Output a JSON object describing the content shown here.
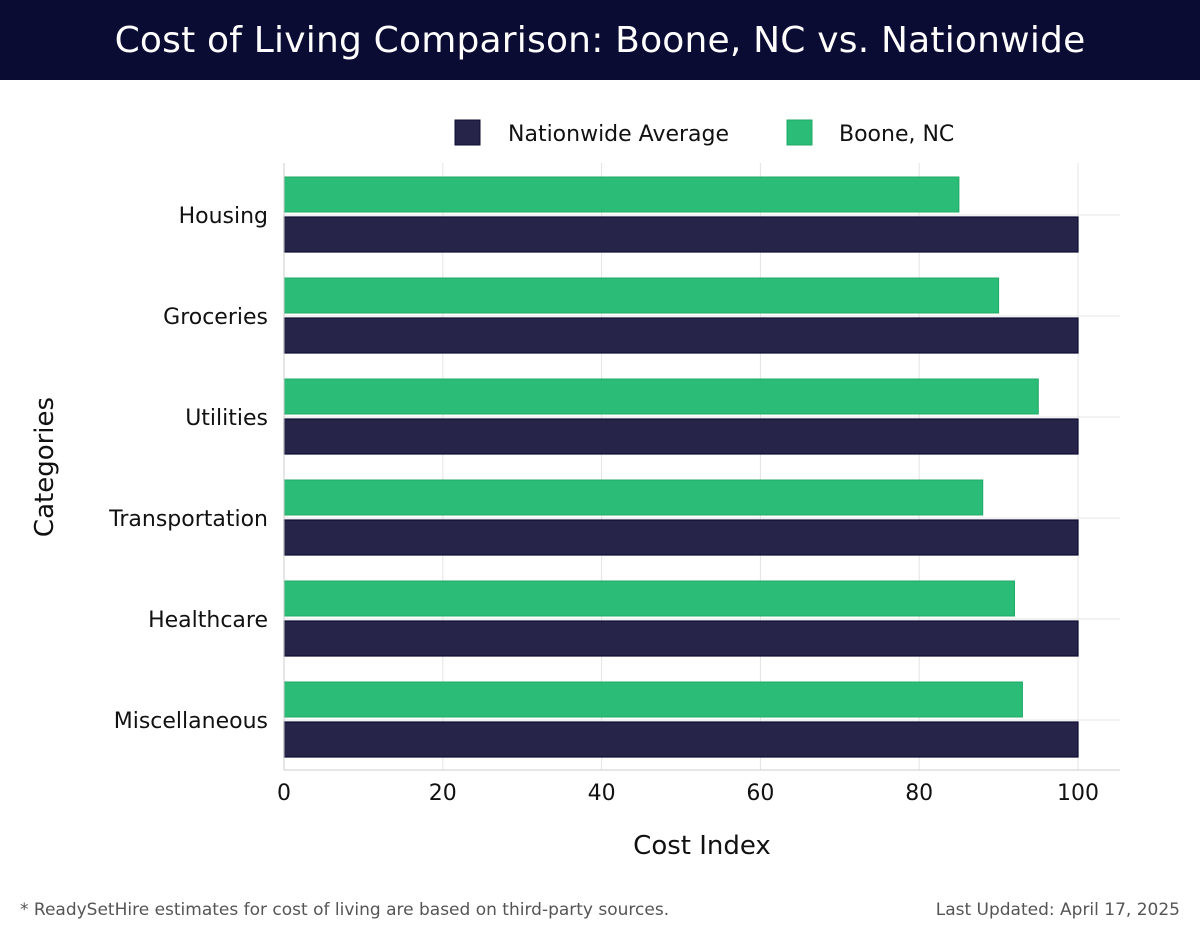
{
  "header": {
    "title": "Cost of Living Comparison: Boone, NC vs. Nationwide"
  },
  "chart_data": {
    "type": "bar",
    "orientation": "horizontal",
    "title": "Cost of Living Comparison: Boone, NC vs. Nationwide",
    "xlabel": "Cost Index",
    "ylabel": "Categories",
    "xlim": [
      0,
      105
    ],
    "xticks": [
      0,
      20,
      40,
      60,
      80,
      100
    ],
    "grid": true,
    "legend_position": "top-center",
    "categories": [
      "Housing",
      "Groceries",
      "Utilities",
      "Transportation",
      "Healthcare",
      "Miscellaneous"
    ],
    "series": [
      {
        "name": "Nationwide Average",
        "color": "#27244a",
        "values": [
          100,
          100,
          100,
          100,
          100,
          100
        ]
      },
      {
        "name": "Boone, NC",
        "color": "#2bbd78",
        "values": [
          85,
          90,
          95,
          88,
          92,
          93
        ]
      }
    ]
  },
  "footer": {
    "note": "* ReadySetHire estimates for cost of living are based on third-party sources.",
    "updated": "Last Updated: April 17, 2025"
  }
}
